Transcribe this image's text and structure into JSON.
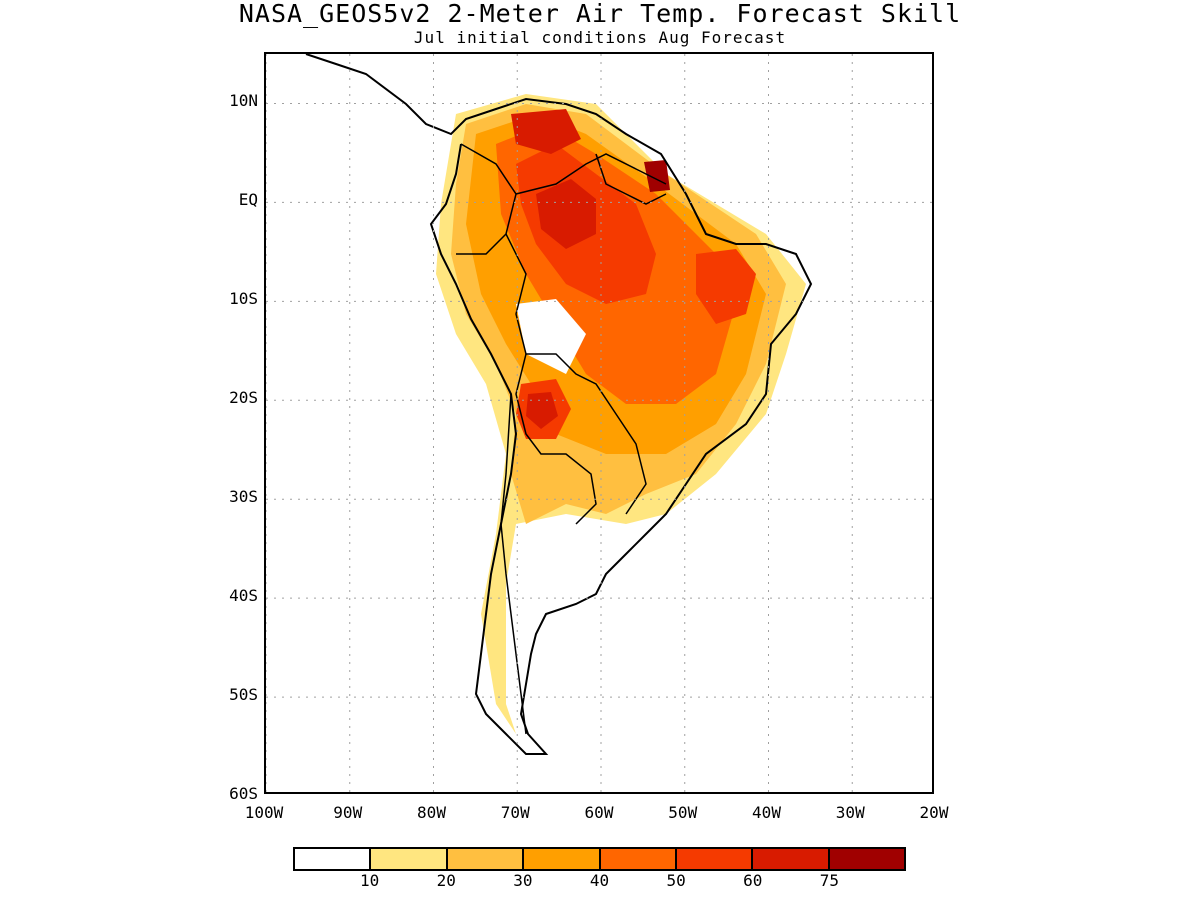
{
  "title": "NASA_GEOS5v2 2-Meter Air Temp. Forecast Skill",
  "subtitle": "Jul initial conditions  Aug Forecast",
  "map": {
    "y_ticks": [
      {
        "label": "10N",
        "lat": 10
      },
      {
        "label": "EQ",
        "lat": 0
      },
      {
        "label": "10S",
        "lat": -10
      },
      {
        "label": "20S",
        "lat": -20
      },
      {
        "label": "30S",
        "lat": -30
      },
      {
        "label": "40S",
        "lat": -40
      },
      {
        "label": "50S",
        "lat": -50
      },
      {
        "label": "60S",
        "lat": -60
      }
    ],
    "x_ticks": [
      {
        "label": "100W",
        "lon": -100
      },
      {
        "label": "90W",
        "lon": -90
      },
      {
        "label": "80W",
        "lon": -80
      },
      {
        "label": "70W",
        "lon": -70
      },
      {
        "label": "60W",
        "lon": -60
      },
      {
        "label": "50W",
        "lon": -50
      },
      {
        "label": "40W",
        "lon": -40
      },
      {
        "label": "30W",
        "lon": -30
      },
      {
        "label": "20W",
        "lon": -20
      }
    ],
    "lon_range": [
      -100,
      -20
    ],
    "lat_range": [
      -60,
      15
    ],
    "grid": "dotted"
  },
  "legend": {
    "labels": [
      "10",
      "20",
      "30",
      "40",
      "50",
      "60",
      "75"
    ],
    "colors": [
      "#ffffff",
      "#ffe680",
      "#ffbf40",
      "#ff9f00",
      "#ff6600",
      "#f53a00",
      "#d81b00",
      "#a00000"
    ]
  },
  "colors": {
    "coastline": "#000000",
    "grid": "#a0a0a0"
  }
}
